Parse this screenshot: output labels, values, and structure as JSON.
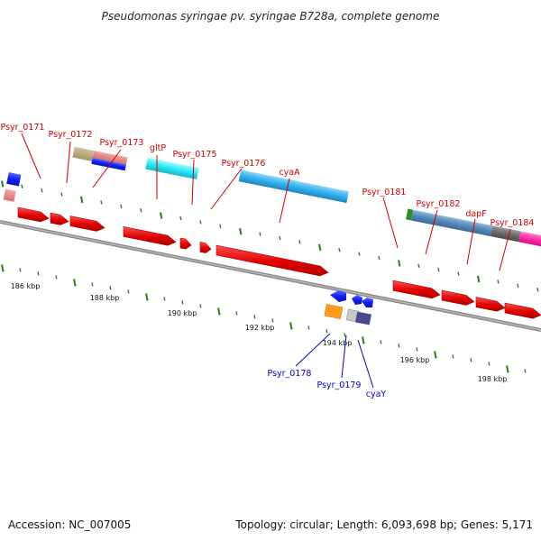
{
  "title": "Pseudomonas syringae pv. syringae B728a, complete genome",
  "footer": {
    "accession": "Accession: NC_007005",
    "topology": "Topology: circular; Length: 6,093,698 bp; Genes: 5,171"
  },
  "colors": {
    "forward_label": "#cc0000",
    "reverse_label": "#0000bb",
    "cds": "#dd0000",
    "backbone": "#808080",
    "ticks": "#2a7a1e"
  },
  "kbp_labels": [
    "186 kbp",
    "188 kbp",
    "190 kbp",
    "192 kbp",
    "194 kbp",
    "196 kbp",
    "198 kbp"
  ],
  "gene_labels_forward": [
    "Psyr_0171",
    "Psyr_0172",
    "Psyr_0173",
    "gltP",
    "Psyr_0175",
    "Psyr_0176",
    "cyaA",
    "Psyr_0181",
    "Psyr_0182",
    "dapF",
    "Psyr_0184"
  ],
  "gene_labels_reverse": [
    "Psyr_0178",
    "Psyr_0179",
    "cyaY"
  ]
}
